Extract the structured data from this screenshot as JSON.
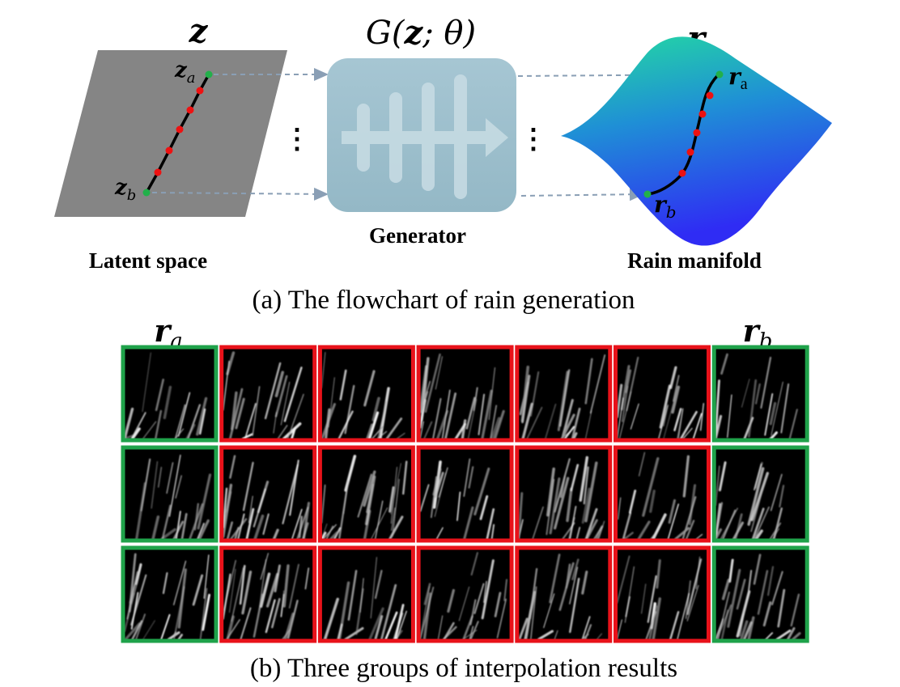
{
  "flowchart": {
    "latent": {
      "symbol": "z",
      "label": "Latent space",
      "point_a": {
        "base": "z",
        "sub": "a"
      },
      "point_b": {
        "base": "z",
        "sub": "b"
      }
    },
    "generator": {
      "formula_prefix": "G(",
      "formula_var": "z",
      "formula_suffix": "; θ)",
      "label": "Generator",
      "dots": "⋮"
    },
    "manifold": {
      "symbol": "r",
      "label": "Rain manifold",
      "point_a": {
        "base": "r",
        "sub": "a"
      },
      "point_b": {
        "base": "r",
        "sub": "b"
      }
    },
    "caption": "(a) The flowchart of rain generation"
  },
  "interpolation": {
    "left_label": {
      "base": "r",
      "sub": "a"
    },
    "right_label": {
      "base": "r",
      "sub": "b"
    },
    "rows": 3,
    "columns": 7,
    "endpoint_color": "#1fa24a",
    "interpolated_color": "#e8121a",
    "caption": "(b) Three groups of interpolation results"
  },
  "colors": {
    "latent_plane": "#858585",
    "generator_box": "#9cbfcd",
    "arrow": "#8a9fb5",
    "path_point": "#ee1111",
    "endpoint_point": "#22b04a",
    "manifold_top": "#22d6a0",
    "manifold_bottom": "#2a2cf2"
  }
}
